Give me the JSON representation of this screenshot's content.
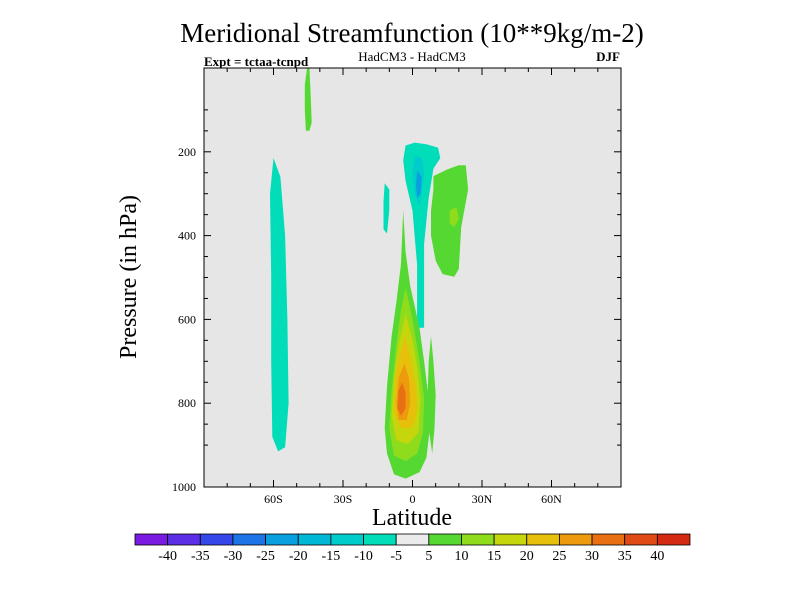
{
  "chart_data": {
    "type": "contour",
    "title": "Meridional Streamfunction (10**9kg/m-2)",
    "subtitle_left": "Expt = tctaa-tcnpd",
    "subtitle_center": "HadCM3 - HadCM3",
    "subtitle_right": "DJF",
    "xlabel": "Latitude",
    "ylabel": "Pressure (in hPa)",
    "xlim": [
      -90,
      90
    ],
    "ylim": [
      1000,
      0
    ],
    "x_ticks": [
      {
        "value": -60,
        "label": "60S"
      },
      {
        "value": -30,
        "label": "30S"
      },
      {
        "value": 0,
        "label": "0"
      },
      {
        "value": 30,
        "label": "30N"
      },
      {
        "value": 60,
        "label": "60N"
      }
    ],
    "y_ticks": [
      {
        "value": 200,
        "label": "200"
      },
      {
        "value": 400,
        "label": "400"
      },
      {
        "value": 600,
        "label": "600"
      },
      {
        "value": 800,
        "label": "800"
      },
      {
        "value": 1000,
        "label": "1000"
      }
    ],
    "background_color": "#e6e6e6",
    "colorbar": {
      "labels": [
        "-40",
        "-35",
        "-30",
        "-25",
        "-20",
        "-15",
        "-10",
        "-5",
        "5",
        "10",
        "15",
        "20",
        "25",
        "30",
        "35",
        "40"
      ],
      "colors": [
        "#7b1ae0",
        "#5c2ee6",
        "#3547e8",
        "#1d74e6",
        "#0aa0e0",
        "#00b8d6",
        "#00cccc",
        "#00ddb8",
        "#ebebeb",
        "#55d932",
        "#8fdc1c",
        "#c6d60c",
        "#e6c00a",
        "#ee9a0e",
        "#e87012",
        "#e04a14",
        "#d42a12"
      ]
    },
    "regions": [
      {
        "level": 10,
        "color": "#55d932",
        "points": [
          [
            -45.5,
            0
          ],
          [
            -44.5,
            0
          ],
          [
            -44.0,
            60
          ],
          [
            -43.5,
            130
          ],
          [
            -44.5,
            150
          ],
          [
            -46.0,
            150
          ],
          [
            -46.5,
            100
          ],
          [
            -46.5,
            40
          ]
        ]
      },
      {
        "level": -10,
        "color": "#00ddb8",
        "points": [
          [
            -60,
            215
          ],
          [
            -57,
            260
          ],
          [
            -55,
            400
          ],
          [
            -54,
            600
          ],
          [
            -53.5,
            800
          ],
          [
            -55,
            905
          ],
          [
            -58,
            915
          ],
          [
            -60.5,
            880
          ],
          [
            -61,
            700
          ],
          [
            -61,
            500
          ],
          [
            -61.5,
            300
          ]
        ]
      },
      {
        "level": -10,
        "color": "#00ddb8",
        "points": [
          [
            -12,
            275
          ],
          [
            -10,
            290
          ],
          [
            -10,
            340
          ],
          [
            -11,
            395
          ],
          [
            -12.5,
            385
          ],
          [
            -12.5,
            320
          ]
        ]
      },
      {
        "level": -10,
        "color": "#00ddb8",
        "points": [
          [
            -3,
            185
          ],
          [
            1,
            178
          ],
          [
            6,
            182
          ],
          [
            11,
            190
          ],
          [
            12,
            215
          ],
          [
            9,
            240
          ],
          [
            7,
            310
          ],
          [
            5,
            420
          ],
          [
            5,
            620
          ],
          [
            2,
            620
          ],
          [
            2,
            470
          ],
          [
            0,
            340
          ],
          [
            -3,
            270
          ],
          [
            -4,
            220
          ]
        ]
      },
      {
        "level": -15,
        "color": "#00cccc",
        "points": [
          [
            1,
            210
          ],
          [
            4,
            215
          ],
          [
            5,
            250
          ],
          [
            4,
            300
          ],
          [
            3,
            330
          ],
          [
            1,
            300
          ],
          [
            0,
            250
          ]
        ]
      },
      {
        "level": -20,
        "color": "#0aa0e0",
        "points": [
          [
            2,
            245
          ],
          [
            4,
            260
          ],
          [
            3.5,
            300
          ],
          [
            2,
            310
          ],
          [
            1.5,
            280
          ]
        ]
      },
      {
        "level": 10,
        "color": "#55d932",
        "points": [
          [
            9,
            258
          ],
          [
            15,
            242
          ],
          [
            20,
            232
          ],
          [
            23,
            232
          ],
          [
            24,
            290
          ],
          [
            21,
            380
          ],
          [
            20,
            480
          ],
          [
            18,
            498
          ],
          [
            13,
            492
          ],
          [
            10,
            460
          ],
          [
            8,
            400
          ],
          [
            8,
            340
          ],
          [
            9,
            290
          ]
        ]
      },
      {
        "level": 15,
        "color": "#8fdc1c",
        "points": [
          [
            16,
            340
          ],
          [
            19,
            332
          ],
          [
            20,
            360
          ],
          [
            18,
            380
          ],
          [
            16,
            370
          ]
        ]
      },
      {
        "level": 10,
        "color": "#55d932",
        "points": [
          [
            -4,
            340
          ],
          [
            -3,
            440
          ],
          [
            -1,
            520
          ],
          [
            3,
            620
          ],
          [
            5,
            700
          ],
          [
            7,
            790
          ],
          [
            7.5,
            860
          ],
          [
            6,
            930
          ],
          [
            3,
            965
          ],
          [
            -3,
            980
          ],
          [
            -8,
            970
          ],
          [
            -11,
            920
          ],
          [
            -12,
            860
          ],
          [
            -11,
            760
          ],
          [
            -9,
            640
          ],
          [
            -7,
            560
          ],
          [
            -5,
            470
          ]
        ]
      },
      {
        "level": 10,
        "color": "#55d932",
        "points": [
          [
            8,
            640
          ],
          [
            9,
            700
          ],
          [
            10,
            780
          ],
          [
            9.5,
            860
          ],
          [
            8.5,
            920
          ],
          [
            7,
            860
          ],
          [
            6.5,
            780
          ],
          [
            7,
            700
          ]
        ]
      },
      {
        "level": 15,
        "color": "#8fdc1c",
        "points": [
          [
            -3,
            525
          ],
          [
            0,
            600
          ],
          [
            3,
            700
          ],
          [
            5,
            790
          ],
          [
            4.5,
            870
          ],
          [
            2,
            920
          ],
          [
            -3,
            938
          ],
          [
            -8,
            925
          ],
          [
            -10,
            860
          ],
          [
            -9,
            770
          ],
          [
            -7,
            660
          ],
          [
            -5,
            580
          ]
        ]
      },
      {
        "level": 20,
        "color": "#c6d60c",
        "points": [
          [
            -3,
            588
          ],
          [
            0,
            648
          ],
          [
            2,
            712
          ],
          [
            3.5,
            790
          ],
          [
            2.5,
            870
          ],
          [
            -2,
            898
          ],
          [
            -7,
            888
          ],
          [
            -9,
            830
          ],
          [
            -8,
            740
          ],
          [
            -6,
            660
          ]
        ]
      },
      {
        "level": 25,
        "color": "#e6c00a",
        "points": [
          [
            -3,
            640
          ],
          [
            -1,
            690
          ],
          [
            1.5,
            760
          ],
          [
            2,
            820
          ],
          [
            0,
            858
          ],
          [
            -5,
            860
          ],
          [
            -8,
            820
          ],
          [
            -7.5,
            745
          ],
          [
            -5.5,
            680
          ]
        ]
      },
      {
        "level": 30,
        "color": "#ee9a0e",
        "points": [
          [
            -3.5,
            705
          ],
          [
            -1.5,
            740
          ],
          [
            -1,
            800
          ],
          [
            -2.5,
            840
          ],
          [
            -6,
            840
          ],
          [
            -7,
            800
          ],
          [
            -6,
            740
          ]
        ]
      },
      {
        "level": 35,
        "color": "#e87012",
        "points": [
          [
            -4.5,
            750
          ],
          [
            -3,
            775
          ],
          [
            -3,
            812
          ],
          [
            -5,
            830
          ],
          [
            -6.5,
            812
          ],
          [
            -6,
            770
          ]
        ]
      }
    ]
  }
}
